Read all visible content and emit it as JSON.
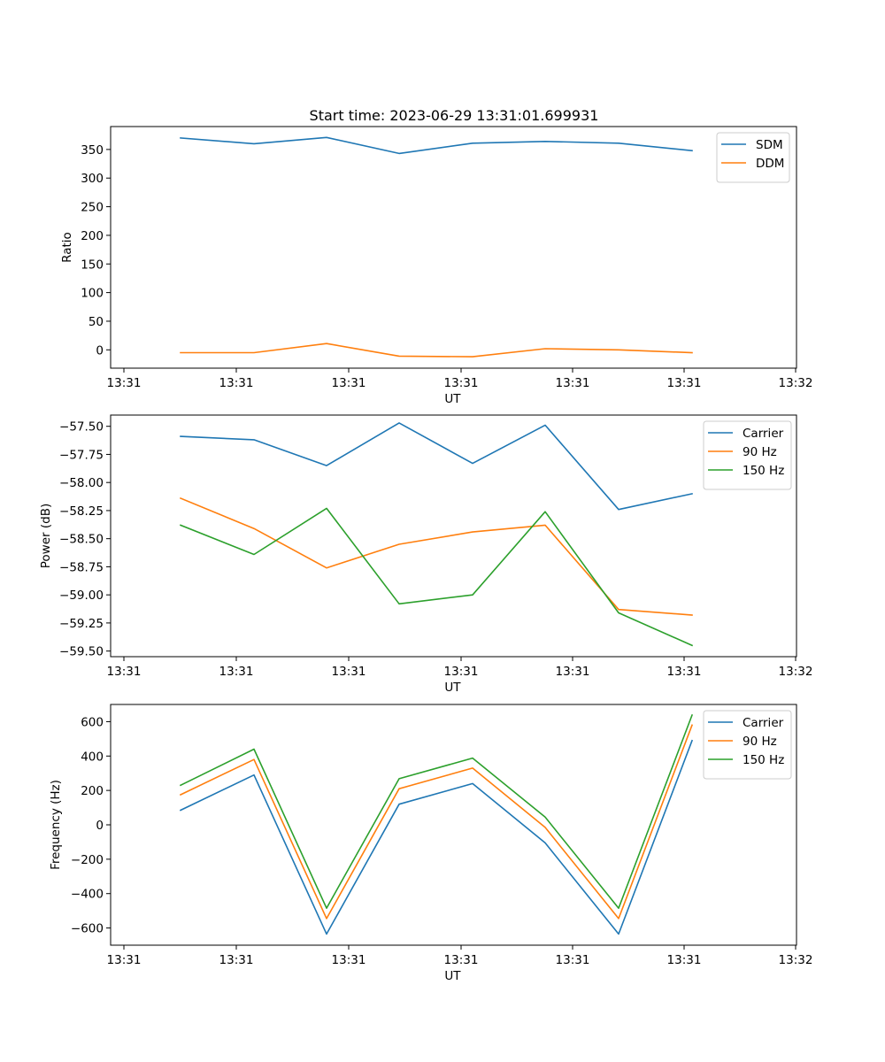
{
  "figure": {
    "title": "Start time: 2023-06-29 13:31:01.699931"
  },
  "chart_data": [
    {
      "type": "line",
      "title": "Start time: 2023-06-29 13:31:01.699931",
      "xlabel": "UT",
      "ylabel": "Ratio",
      "x_tick_labels": [
        "13:31",
        "13:31",
        "13:31",
        "13:31",
        "13:31",
        "13:31",
        "13:32"
      ],
      "y_ticks": [
        0,
        50,
        100,
        150,
        200,
        250,
        300,
        350
      ],
      "ylim": [
        -32,
        390
      ],
      "legend_position": "upper right",
      "series": [
        {
          "name": "SDM",
          "color": "#1f77b4",
          "values": [
            370,
            360,
            371,
            343,
            361,
            364,
            361,
            348
          ]
        },
        {
          "name": "DDM",
          "color": "#ff7f0e",
          "values": [
            -5,
            -5,
            11,
            -11,
            -12,
            2,
            0,
            -5
          ]
        }
      ]
    },
    {
      "type": "line",
      "title": "",
      "xlabel": "UT",
      "ylabel": "Power (dB)",
      "x_tick_labels": [
        "13:31",
        "13:31",
        "13:31",
        "13:31",
        "13:31",
        "13:31",
        "13:32"
      ],
      "y_ticks": [
        -57.5,
        -57.75,
        -58.0,
        -58.25,
        -58.5,
        -58.75,
        -59.0,
        -59.25,
        -59.5
      ],
      "y_tick_labels": [
        "−57.50",
        "−57.75",
        "−58.00",
        "−58.25",
        "−58.50",
        "−58.75",
        "−59.00",
        "−59.25",
        "−59.50"
      ],
      "ylim": [
        -59.55,
        -57.4
      ],
      "legend_position": "upper right",
      "series": [
        {
          "name": "Carrier",
          "color": "#1f77b4",
          "values": [
            -57.59,
            -57.62,
            -57.85,
            -57.47,
            -57.83,
            -57.49,
            -58.24,
            -58.1
          ]
        },
        {
          "name": "90 Hz",
          "color": "#ff7f0e",
          "values": [
            -58.14,
            -58.41,
            -58.76,
            -58.55,
            -58.44,
            -58.38,
            -59.13,
            -59.18
          ]
        },
        {
          "name": "150 Hz",
          "color": "#2ca02c",
          "values": [
            -58.38,
            -58.64,
            -58.23,
            -59.08,
            -59.0,
            -58.26,
            -59.16,
            -59.45
          ]
        }
      ]
    },
    {
      "type": "line",
      "title": "",
      "xlabel": "UT",
      "ylabel": "Frequency (Hz)",
      "x_tick_labels": [
        "13:31",
        "13:31",
        "13:31",
        "13:31",
        "13:31",
        "13:31",
        "13:32"
      ],
      "y_ticks": [
        -600,
        -400,
        -200,
        0,
        200,
        400,
        600
      ],
      "y_tick_labels": [
        "−600",
        "−400",
        "−200",
        "0",
        "200",
        "400",
        "600"
      ],
      "ylim": [
        -700,
        700
      ],
      "legend_position": "upper right",
      "series": [
        {
          "name": "Carrier",
          "color": "#1f77b4",
          "values": [
            85,
            290,
            -635,
            120,
            240,
            -105,
            -635,
            490
          ]
        },
        {
          "name": "90 Hz",
          "color": "#ff7f0e",
          "values": [
            175,
            380,
            -545,
            210,
            330,
            -15,
            -545,
            580
          ]
        },
        {
          "name": "150 Hz",
          "color": "#2ca02c",
          "values": [
            230,
            440,
            -485,
            268,
            388,
            45,
            -485,
            638
          ]
        }
      ]
    }
  ]
}
